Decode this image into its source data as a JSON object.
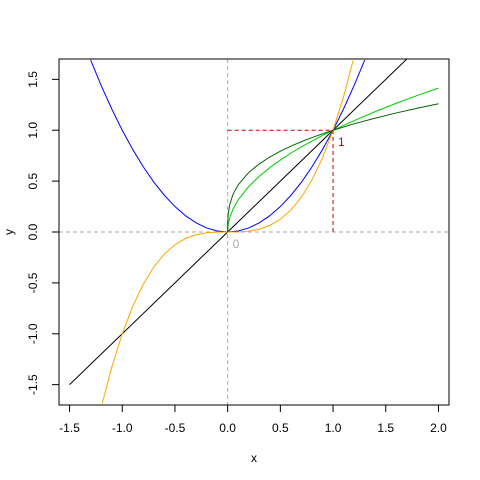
{
  "chart_data": {
    "type": "line",
    "title": "",
    "xlabel": "x",
    "ylabel": "y",
    "xlim": [
      -1.6,
      2.1
    ],
    "ylim": [
      -1.7,
      1.7
    ],
    "grid": false,
    "x_ticks": [
      -1.5,
      -1.0,
      -0.5,
      0.0,
      0.5,
      1.0,
      1.5,
      2.0
    ],
    "x_tick_labels": [
      "-1.5",
      "-1.0",
      "-0.5",
      "0.0",
      "0.5",
      "1.0",
      "1.5",
      "2.0"
    ],
    "y_ticks": [
      -1.5,
      -1.0,
      -0.5,
      0.0,
      0.5,
      1.0,
      1.5
    ],
    "y_tick_labels": [
      "-1.5",
      "-1.0",
      "-0.5",
      "0.0",
      "0.5",
      "1.0",
      "1.5"
    ],
    "series": [
      {
        "color": "#000000",
        "x": [
          -1.5,
          -1.0,
          -0.5,
          0.0,
          0.5,
          1.0,
          1.5,
          2.0
        ],
        "y": [
          -1.5,
          -1.0,
          -0.5,
          0.0,
          0.5,
          1.0,
          1.5,
          2.0
        ]
      },
      {
        "color": "#0000ff",
        "x": [
          -1.3,
          -1.2,
          -1.1,
          -1.0,
          -0.9,
          -0.8,
          -0.7,
          -0.6,
          -0.5,
          -0.4,
          -0.3,
          -0.2,
          -0.1,
          0.0,
          0.1,
          0.2,
          0.3,
          0.4,
          0.5,
          0.6,
          0.7,
          0.8,
          0.9,
          1.0,
          1.1,
          1.2,
          1.3
        ],
        "y": [
          1.69,
          1.44,
          1.21,
          1.0,
          0.81,
          0.64,
          0.49,
          0.36,
          0.25,
          0.16,
          0.09,
          0.04,
          0.01,
          0.0,
          0.01,
          0.04,
          0.09,
          0.16,
          0.25,
          0.36,
          0.49,
          0.64,
          0.81,
          1.0,
          1.21,
          1.44,
          1.69
        ]
      },
      {
        "color": "#ffa500",
        "x": [
          -1.19,
          -1.1,
          -1.0,
          -0.9,
          -0.8,
          -0.7,
          -0.6,
          -0.5,
          -0.4,
          -0.3,
          -0.2,
          -0.1,
          0.0,
          0.1,
          0.2,
          0.3,
          0.4,
          0.5,
          0.6,
          0.7,
          0.8,
          0.9,
          1.0,
          1.1,
          1.19
        ],
        "y": [
          -1.685,
          -1.331,
          -1.0,
          -0.729,
          -0.512,
          -0.343,
          -0.216,
          -0.125,
          -0.064,
          -0.027,
          -0.008,
          -0.001,
          0.0,
          0.001,
          0.008,
          0.027,
          0.064,
          0.125,
          0.216,
          0.343,
          0.512,
          0.729,
          1.0,
          1.331,
          1.685
        ]
      },
      {
        "color": "#00cc00",
        "x": [
          0.0,
          0.005,
          0.02,
          0.05,
          0.1,
          0.2,
          0.3,
          0.4,
          0.5,
          0.6,
          0.7,
          0.8,
          0.9,
          1.0,
          1.2,
          1.4,
          1.6,
          1.8,
          2.0
        ],
        "y": [
          0.0,
          0.071,
          0.141,
          0.224,
          0.316,
          0.447,
          0.548,
          0.632,
          0.707,
          0.775,
          0.837,
          0.894,
          0.949,
          1.0,
          1.095,
          1.183,
          1.265,
          1.342,
          1.414
        ]
      },
      {
        "color": "#006400",
        "x": [
          0.0,
          0.001,
          0.005,
          0.02,
          0.05,
          0.1,
          0.2,
          0.3,
          0.4,
          0.5,
          0.6,
          0.7,
          0.8,
          0.9,
          1.0,
          1.2,
          1.4,
          1.6,
          1.8,
          2.0
        ],
        "y": [
          0.0,
          0.1,
          0.171,
          0.271,
          0.368,
          0.464,
          0.585,
          0.669,
          0.737,
          0.794,
          0.843,
          0.888,
          0.928,
          0.965,
          1.0,
          1.063,
          1.119,
          1.17,
          1.216,
          1.26
        ]
      }
    ],
    "reference_lines": [
      {
        "axis": "h",
        "value": 0,
        "color": "#a9a9a9",
        "style": "dashed"
      },
      {
        "axis": "v",
        "value": 0,
        "color": "#a9a9a9",
        "style": "dashed"
      }
    ],
    "marker_segments": [
      {
        "x1": 0,
        "y1": 1,
        "x2": 1,
        "y2": 1,
        "color": "#cd0000",
        "style": "dashed"
      },
      {
        "x1": 1,
        "y1": 0,
        "x2": 1,
        "y2": 1,
        "color": "#cd0000",
        "style": "dashed"
      }
    ],
    "annotations": [
      {
        "text": "0",
        "x": 0.0,
        "y": 0.0,
        "color": "#a9a9a9"
      },
      {
        "text": "1",
        "x": 1.0,
        "y": 1.0,
        "color": "#cd0000"
      }
    ]
  }
}
